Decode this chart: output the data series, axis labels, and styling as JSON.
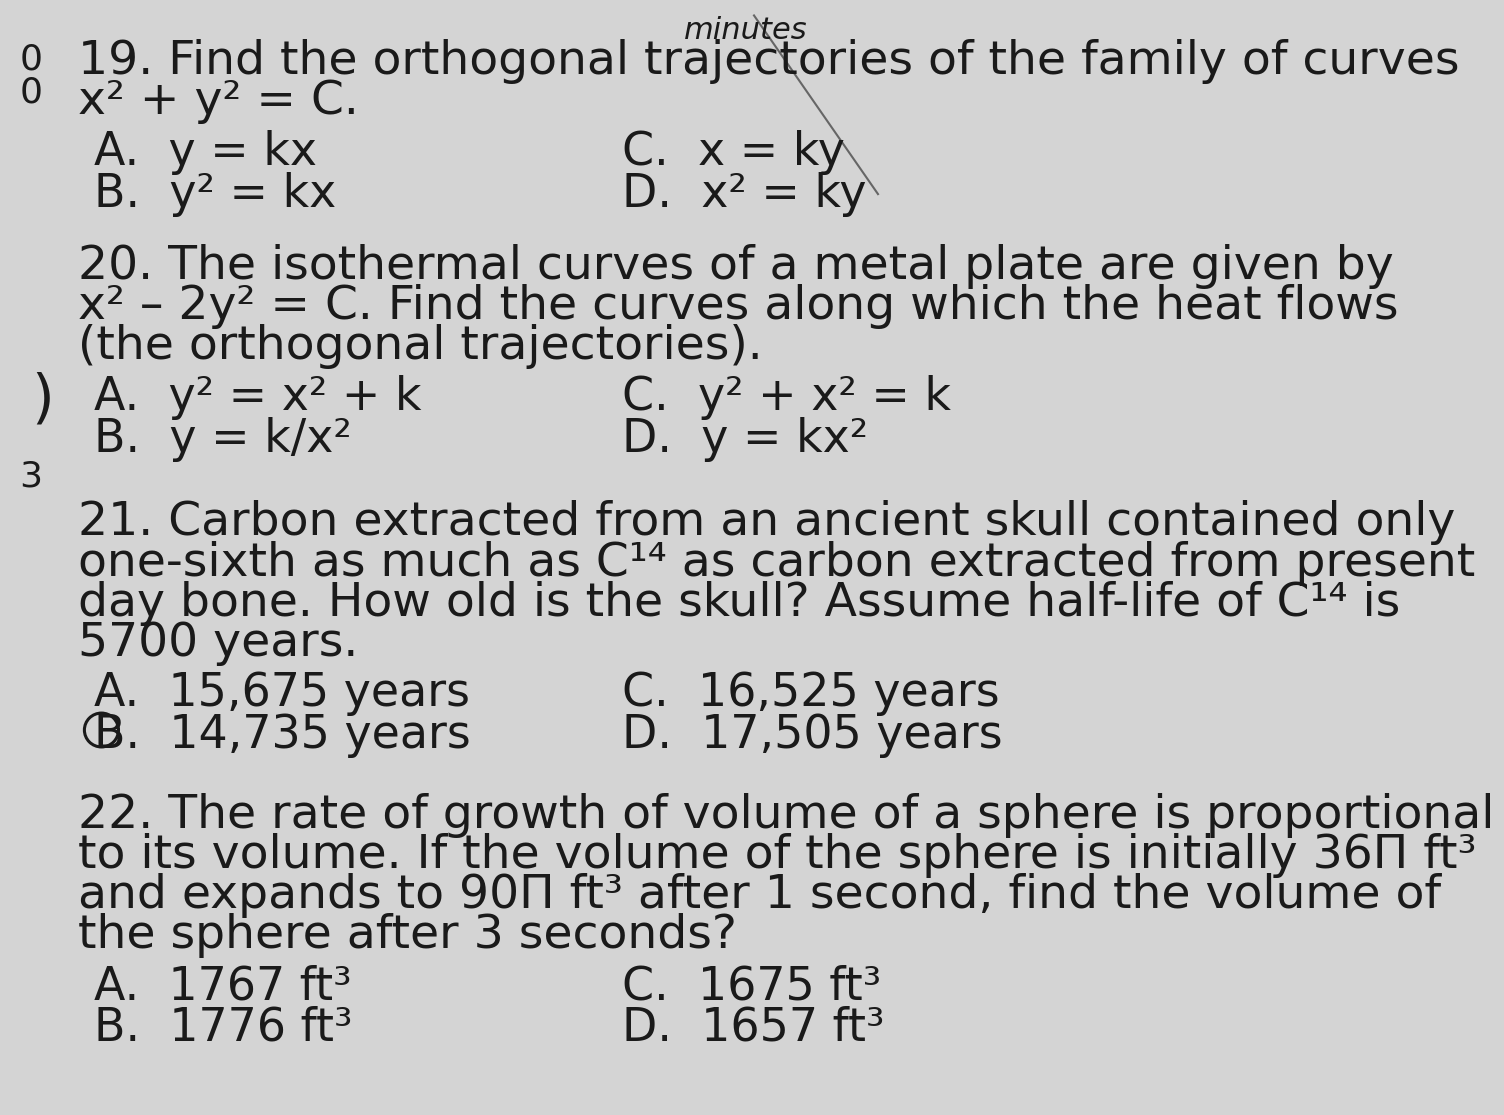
{
  "bg_color": "#d4d4d4",
  "text_color": "#1a1a1a",
  "font_family": "DejaVu Sans",
  "top_text": "minutes",
  "left_mark1": "0",
  "left_mark2": "0",
  "left_mark3": "3",
  "left_bracket": ")",
  "diagonal_line": [
    [
      960,
      8
    ],
    [
      1120,
      240
    ]
  ],
  "q19_line1": "19. Find the orthogonal trajectories of the family of curves",
  "q19_line2": "x² + y² = C.",
  "q19_A": "A.  y = kx",
  "q19_B": "B.  y² = kx",
  "q19_C": "C.  x = ky",
  "q19_D": "D.  x² = ky",
  "q20_line1": "20. The isothermal curves of a metal plate are given by",
  "q20_line2": "x² – 2y² = C. Find the curves along which the heat flows",
  "q20_line3": "(the orthogonal trajectories).",
  "q20_A": "A.  y² = x² + k",
  "q20_B": "B.  y = k/x²",
  "q20_C": "C.  y² + x² = k",
  "q20_D": "D.  y = kx²",
  "q21_line1": "21. Carbon extracted from an ancient skull contained only",
  "q21_line2": "one-sixth as much as C¹⁴ as carbon extracted from present",
  "q21_line3": "day bone. How old is the skull? Assume half-life of C¹⁴ is",
  "q21_line4": "5700 years.",
  "q21_A": "A.  15,675 years",
  "q21_B": "B.  14,735 years",
  "q21_C": "C.  16,525 years",
  "q21_D": "D.  17,505 years",
  "q22_line1": "22. The rate of growth of volume of a sphere is proportional",
  "q22_line2": "to its volume. If the volume of the sphere is initially 36Π ft³",
  "q22_line3": "and expands to 90Π ft³ after 1 second, find the volume of",
  "q22_line4": "the sphere after 3 seconds?",
  "q22_A": "A.  1767 ft³",
  "q22_B": "B.  1776 ft³",
  "q22_C": "C.  1675 ft³",
  "q22_D": "D.  1657 ft³"
}
